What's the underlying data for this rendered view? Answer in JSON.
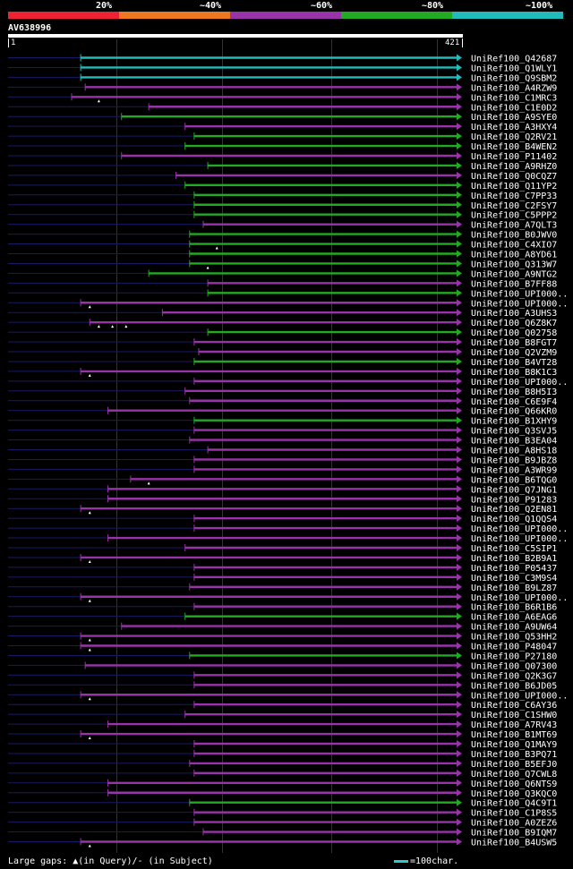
{
  "legend": [
    {
      "label": "20%",
      "color": "#ee2233"
    },
    {
      "label": "~40%",
      "color": "#ee7722"
    },
    {
      "label": "~60%",
      "color": "#9933aa"
    },
    {
      "label": "~80%",
      "color": "#22aa22"
    },
    {
      "label": "~100%",
      "color": "#22bbbb"
    }
  ],
  "query": {
    "name": "AV638996",
    "start": "1",
    "end": "421"
  },
  "footer": {
    "gaps_text": "Large gaps: ▲(in Query)/- (in Subject)",
    "scale_text": "=100char."
  },
  "hits": [
    {
      "label": "UniRef100_Q42687",
      "start": 0.16,
      "color": "#22bbbb"
    },
    {
      "label": "UniRef100_Q1WLY1",
      "start": 0.16,
      "color": "#22bbbb"
    },
    {
      "label": "UniRef100_Q9SBM2",
      "start": 0.16,
      "color": "#22bbbb"
    },
    {
      "label": "UniRef100_A4RZW9",
      "start": 0.17,
      "color": "#9933aa"
    },
    {
      "label": "UniRef100_C1MRC3",
      "start": 0.14,
      "color": "#9933aa",
      "gaps": [
        0.2
      ]
    },
    {
      "label": "UniRef100_C1E0D2",
      "start": 0.31,
      "color": "#9933aa"
    },
    {
      "label": "UniRef100_A9SYE0",
      "start": 0.25,
      "color": "#22aa22"
    },
    {
      "label": "UniRef100_A3HXY4",
      "start": 0.39,
      "color": "#9933aa"
    },
    {
      "label": "UniRef100_Q2RV21",
      "start": 0.41,
      "color": "#22aa22"
    },
    {
      "label": "UniRef100_B4WEN2",
      "start": 0.39,
      "color": "#22aa22"
    },
    {
      "label": "UniRef100_P11402",
      "start": 0.25,
      "color": "#9933aa"
    },
    {
      "label": "UniRef100_A9RHZ0",
      "start": 0.44,
      "color": "#22aa22"
    },
    {
      "label": "UniRef100_Q0CQZ7",
      "start": 0.37,
      "color": "#9933aa"
    },
    {
      "label": "UniRef100_Q11YP2",
      "start": 0.39,
      "color": "#22aa22"
    },
    {
      "label": "UniRef100_C7PP33",
      "start": 0.41,
      "color": "#22aa22"
    },
    {
      "label": "UniRef100_C2FSY7",
      "start": 0.41,
      "color": "#22aa22"
    },
    {
      "label": "UniRef100_C5PPP2",
      "start": 0.41,
      "color": "#22aa22"
    },
    {
      "label": "UniRef100_A7QLT3",
      "start": 0.43,
      "color": "#9933aa"
    },
    {
      "label": "UniRef100_B0JWV0",
      "start": 0.4,
      "color": "#22aa22"
    },
    {
      "label": "UniRef100_C4XIO7",
      "start": 0.4,
      "color": "#22aa22",
      "gaps": [
        0.46
      ]
    },
    {
      "label": "UniRef100_A8YD61",
      "start": 0.4,
      "color": "#22aa22"
    },
    {
      "label": "UniRef100_Q313W7",
      "start": 0.4,
      "color": "#22aa22",
      "gaps": [
        0.44
      ]
    },
    {
      "label": "UniRef100_A9NTG2",
      "start": 0.31,
      "color": "#22aa22"
    },
    {
      "label": "UniRef100_B7FF88",
      "start": 0.44,
      "color": "#9933aa"
    },
    {
      "label": "UniRef100_UPI000..",
      "start": 0.44,
      "color": "#22aa22"
    },
    {
      "label": "UniRef100_UPI000..",
      "start": 0.16,
      "color": "#9933aa",
      "gaps": [
        0.18
      ]
    },
    {
      "label": "UniRef100_A3UHS3",
      "start": 0.34,
      "color": "#9933aa"
    },
    {
      "label": "UniRef100_Q6Z8K7",
      "start": 0.18,
      "color": "#9933aa",
      "gaps": [
        0.2,
        0.23,
        0.26
      ]
    },
    {
      "label": "UniRef100_Q02758",
      "start": 0.44,
      "color": "#22aa22"
    },
    {
      "label": "UniRef100_B8FGT7",
      "start": 0.41,
      "color": "#9933aa"
    },
    {
      "label": "UniRef100_Q2VZM9",
      "start": 0.42,
      "color": "#9933aa"
    },
    {
      "label": "UniRef100_B4VT28",
      "start": 0.41,
      "color": "#22aa22"
    },
    {
      "label": "UniRef100_B8K1C3",
      "start": 0.16,
      "color": "#9933aa",
      "gaps": [
        0.18
      ]
    },
    {
      "label": "UniRef100_UPI000..",
      "start": 0.41,
      "color": "#9933aa"
    },
    {
      "label": "UniRef100_B8H5I3",
      "start": 0.39,
      "color": "#9933aa"
    },
    {
      "label": "UniRef100_C6E9F4",
      "start": 0.4,
      "color": "#9933aa"
    },
    {
      "label": "UniRef100_Q66KR0",
      "start": 0.22,
      "color": "#9933aa"
    },
    {
      "label": "UniRef100_B1XHY9",
      "start": 0.41,
      "color": "#22aa22"
    },
    {
      "label": "UniRef100_Q3SVJ5",
      "start": 0.41,
      "color": "#9933aa"
    },
    {
      "label": "UniRef100_B3EA04",
      "start": 0.4,
      "color": "#9933aa"
    },
    {
      "label": "UniRef100_A8HS18",
      "start": 0.44,
      "color": "#9933aa"
    },
    {
      "label": "UniRef100_B9JBZ8",
      "start": 0.41,
      "color": "#9933aa"
    },
    {
      "label": "UniRef100_A3WR99",
      "start": 0.41,
      "color": "#9933aa"
    },
    {
      "label": "UniRef100_B6TQG0",
      "start": 0.27,
      "color": "#9933aa",
      "gaps": [
        0.31
      ]
    },
    {
      "label": "UniRef100_Q7JNG1",
      "start": 0.22,
      "color": "#9933aa"
    },
    {
      "label": "UniRef100_P91283",
      "start": 0.22,
      "color": "#9933aa"
    },
    {
      "label": "UniRef100_Q2EN81",
      "start": 0.16,
      "color": "#9933aa",
      "gaps": [
        0.18
      ]
    },
    {
      "label": "UniRef100_Q1QQS4",
      "start": 0.41,
      "color": "#9933aa"
    },
    {
      "label": "UniRef100_UPI000..",
      "start": 0.41,
      "color": "#9933aa"
    },
    {
      "label": "UniRef100_UPI000..",
      "start": 0.22,
      "color": "#9933aa"
    },
    {
      "label": "UniRef100_C5SIP1",
      "start": 0.39,
      "color": "#9933aa"
    },
    {
      "label": "UniRef100_B2B9A1",
      "start": 0.16,
      "color": "#9933aa",
      "gaps": [
        0.18
      ]
    },
    {
      "label": "UniRef100_P05437",
      "start": 0.41,
      "color": "#9933aa"
    },
    {
      "label": "UniRef100_C3M9S4",
      "start": 0.41,
      "color": "#9933aa"
    },
    {
      "label": "UniRef100_B9LZ87",
      "start": 0.4,
      "color": "#9933aa"
    },
    {
      "label": "UniRef100_UPI000..",
      "start": 0.16,
      "color": "#9933aa",
      "gaps": [
        0.18
      ]
    },
    {
      "label": "UniRef100_B6R1B6",
      "start": 0.41,
      "color": "#9933aa"
    },
    {
      "label": "UniRef100_A6EAG6",
      "start": 0.39,
      "color": "#22aa22"
    },
    {
      "label": "UniRef100_A9UW64",
      "start": 0.25,
      "color": "#9933aa"
    },
    {
      "label": "UniRef100_Q53HH2",
      "start": 0.16,
      "color": "#9933aa",
      "gaps": [
        0.18
      ]
    },
    {
      "label": "UniRef100_P48047",
      "start": 0.16,
      "color": "#9933aa",
      "gaps": [
        0.18
      ]
    },
    {
      "label": "UniRef100_P27180",
      "start": 0.4,
      "color": "#22aa22"
    },
    {
      "label": "UniRef100_Q07300",
      "start": 0.17,
      "color": "#9933aa"
    },
    {
      "label": "UniRef100_Q2K3G7",
      "start": 0.41,
      "color": "#9933aa"
    },
    {
      "label": "UniRef100_B6JD05",
      "start": 0.41,
      "color": "#9933aa"
    },
    {
      "label": "UniRef100_UPI000..",
      "start": 0.16,
      "color": "#9933aa",
      "gaps": [
        0.18
      ]
    },
    {
      "label": "UniRef100_C6AY36",
      "start": 0.41,
      "color": "#9933aa"
    },
    {
      "label": "UniRef100_C1SHW0",
      "start": 0.39,
      "color": "#9933aa"
    },
    {
      "label": "UniRef100_A7RV43",
      "start": 0.22,
      "color": "#9933aa"
    },
    {
      "label": "UniRef100_B1MT69",
      "start": 0.16,
      "color": "#9933aa",
      "gaps": [
        0.18
      ]
    },
    {
      "label": "UniRef100_Q1MAY9",
      "start": 0.41,
      "color": "#9933aa"
    },
    {
      "label": "UniRef100_B3PQ71",
      "start": 0.41,
      "color": "#9933aa"
    },
    {
      "label": "UniRef100_B5EFJ0",
      "start": 0.4,
      "color": "#9933aa"
    },
    {
      "label": "UniRef100_Q7CWL8",
      "start": 0.41,
      "color": "#9933aa"
    },
    {
      "label": "UniRef100_Q6NTS9",
      "start": 0.22,
      "color": "#9933aa"
    },
    {
      "label": "UniRef100_Q3KQC0",
      "start": 0.22,
      "color": "#9933aa"
    },
    {
      "label": "UniRef100_Q4C9T1",
      "start": 0.4,
      "color": "#22aa22"
    },
    {
      "label": "UniRef100_C1P8S5",
      "start": 0.41,
      "color": "#9933aa"
    },
    {
      "label": "UniRef100_A0ZEZ6",
      "start": 0.41,
      "color": "#9933aa"
    },
    {
      "label": "UniRef100_B9IQM7",
      "start": 0.43,
      "color": "#9933aa"
    },
    {
      "label": "UniRef100_B4USW5",
      "start": 0.16,
      "color": "#9933aa",
      "gaps": [
        0.18
      ]
    }
  ]
}
